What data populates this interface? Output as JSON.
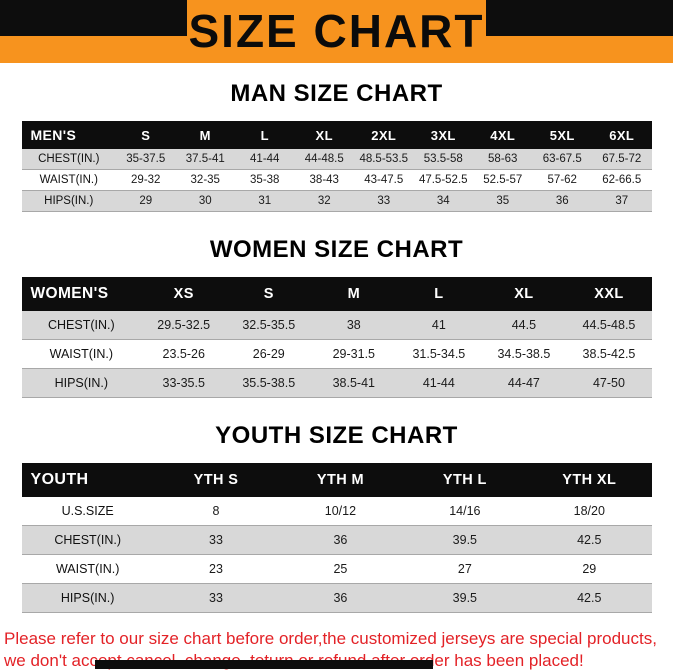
{
  "banner": {
    "title": "SIZE CHART"
  },
  "sections": [
    {
      "id": "men",
      "heading": "MAN SIZE CHART",
      "header": [
        "MEN'S",
        "S",
        "M",
        "L",
        "XL",
        "2XL",
        "3XL",
        "4XL",
        "5XL",
        "6XL"
      ],
      "rows": [
        {
          "label": "CHEST(IN.)",
          "values": [
            "35-37.5",
            "37.5-41",
            "41-44",
            "44-48.5",
            "48.5-53.5",
            "53.5-58",
            "58-63",
            "63-67.5",
            "67.5-72"
          ]
        },
        {
          "label": "WAIST(IN.)",
          "values": [
            "29-32",
            "32-35",
            "35-38",
            "38-43",
            "43-47.5",
            "47.5-52.5",
            "52.5-57",
            "57-62",
            "62-66.5"
          ]
        },
        {
          "label": "HIPS(IN.)",
          "values": [
            "29",
            "30",
            "31",
            "32",
            "33",
            "34",
            "35",
            "36",
            "37"
          ]
        }
      ]
    },
    {
      "id": "women",
      "heading": "WOMEN SIZE CHART",
      "header": [
        "WOMEN'S",
        "XS",
        "S",
        "M",
        "L",
        "XL",
        "XXL"
      ],
      "rows": [
        {
          "label": "CHEST(IN.)",
          "values": [
            "29.5-32.5",
            "32.5-35.5",
            "38",
            "41",
            "44.5",
            "44.5-48.5"
          ]
        },
        {
          "label": "WAIST(IN.)",
          "values": [
            "23.5-26",
            "26-29",
            "29-31.5",
            "31.5-34.5",
            "34.5-38.5",
            "38.5-42.5"
          ]
        },
        {
          "label": "HIPS(IN.)",
          "values": [
            "33-35.5",
            "35.5-38.5",
            "38.5-41",
            "41-44",
            "44-47",
            "47-50"
          ]
        }
      ]
    },
    {
      "id": "youth",
      "heading": "YOUTH SIZE CHART",
      "header": [
        "YOUTH",
        "YTH S",
        "YTH M",
        "YTH L",
        "YTH XL"
      ],
      "rows": [
        {
          "label": "U.S.SIZE",
          "values": [
            "8",
            "10/12",
            "14/16",
            "18/20"
          ]
        },
        {
          "label": "CHEST(IN.)",
          "values": [
            "33",
            "36",
            "39.5",
            "42.5"
          ]
        },
        {
          "label": "WAIST(IN.)",
          "values": [
            "23",
            "25",
            "27",
            "29"
          ]
        },
        {
          "label": "HIPS(IN.)",
          "values": [
            "33",
            "36",
            "39.5",
            "42.5"
          ]
        }
      ]
    }
  ],
  "footer": {
    "line1": "Please refer to our size chart before order,the customized jerseys are special products,",
    "line2": "we don't accept cancel, change, teturn or refund after order has been placed!"
  },
  "colors": {
    "banner_orange": "#F7931E",
    "header_black": "#0D0D0D",
    "row_gray": "#D8D8D8",
    "notice_red": "#E32227"
  }
}
